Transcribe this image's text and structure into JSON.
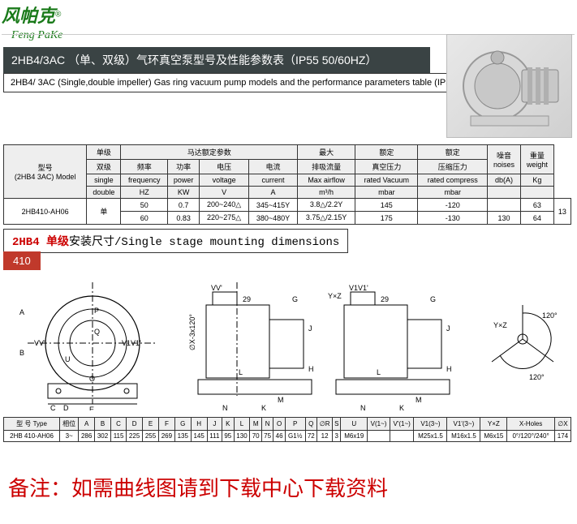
{
  "logo": {
    "cn": "风帕克",
    "en": "Feng PaKe",
    "reg": "®"
  },
  "titleDark": "2HB4/3AC （单、双级）气环真空泵型号及性能参数表（IP55 50/60HZ）",
  "titleLight": "2HB4/ 3AC (Single,double impeller) Gas ring vacuum pump models and the performance parameters table (IP55 50/60HZ)",
  "spec": {
    "headerRows": [
      [
        "型号",
        "单级",
        "马达额定参数",
        "",
        "",
        "",
        "最大",
        "额定",
        "额定",
        "噪音",
        "重量"
      ],
      [
        "(2HB4 3AC)\nModel",
        "双级",
        "频率",
        "功率",
        "电压",
        "电流",
        "排吸流量",
        "真空压力",
        "压缩压力",
        "noises",
        "weight"
      ],
      [
        "",
        "single",
        "frequency",
        "power",
        "voltage",
        "current",
        "Max airflow",
        "rated Vacuum",
        "rated compress",
        "db(A)",
        "Kg"
      ],
      [
        "",
        "double",
        "HZ",
        "KW",
        "V",
        "A",
        "m³/h",
        "mbar",
        "mbar",
        "",
        ""
      ]
    ],
    "dataRows": [
      [
        "2HB410-AH06",
        "单",
        "50",
        "0.7",
        "200~240△",
        "345~415Y",
        "3.8△/2.2Y",
        "145",
        "-120",
        "",
        "63",
        "13"
      ],
      [
        "",
        "",
        "60",
        "0.83",
        "220~275△",
        "380~480Y",
        "3.75△/2.15Y",
        "175",
        "-130",
        "130",
        "64",
        ""
      ]
    ]
  },
  "sub": {
    "red": "2HB4 单级",
    "text": "安装尺寸/Single stage mounting dimensions"
  },
  "badge": "410",
  "dim": {
    "headers": [
      "型 号 Type",
      "相位",
      "A",
      "B",
      "C",
      "D",
      "E",
      "F",
      "G",
      "H",
      "J",
      "K",
      "L",
      "M",
      "N",
      "O",
      "P",
      "Q",
      "∅R",
      "S",
      "U",
      "V(1~)",
      "V'(1~)",
      "V1(3~)",
      "V1'(3~)",
      "Y×Z",
      "X-Holes",
      "∅X"
    ],
    "row": [
      "2HB 410-AH06",
      "3~",
      "286",
      "302",
      "115",
      "225",
      "255",
      "269",
      "135",
      "145",
      "111",
      "95",
      "130",
      "70",
      "75",
      "46",
      "G1½",
      "72",
      "12",
      "3",
      "M6x19",
      "",
      "",
      "M25x1.5",
      "M16x1.5",
      "M6x15",
      "0°/120°/240°",
      "174"
    ]
  },
  "footnote": "备注：如需曲线图请到下载中心下载资料",
  "diag": {
    "labels": {
      "A": "A",
      "B": "B",
      "C": "C",
      "D": "D",
      "E": "E",
      "G": "G",
      "H": "H",
      "J": "J",
      "K": "K",
      "L": "L",
      "M": "M",
      "N": "N",
      "O": "O",
      "P": "P",
      "Q": "Q",
      "U": "U",
      "VV": "VV'",
      "V1V1": "V1V1'",
      "ox": "∅X-3x120°",
      "yxz": "Y×Z",
      "a120": "120°",
      "a29": "29"
    }
  }
}
